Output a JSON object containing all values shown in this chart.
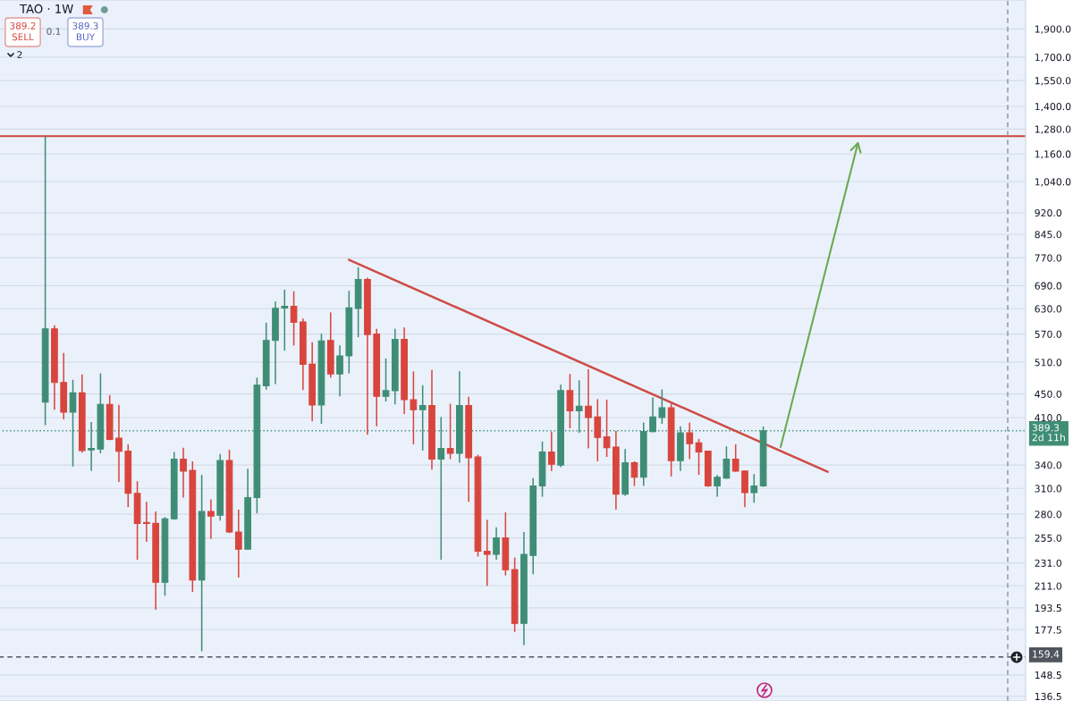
{
  "chart_data": {
    "type": "candlestick",
    "title": "TAO · 1W",
    "log": true,
    "annotations": [
      "389.2\nSELL",
      "0.1",
      "389.3\nBUY",
      "2"
    ],
    "categories": [
      null,
      null,
      null,
      null,
      null,
      null,
      null,
      null,
      null,
      null,
      null,
      null,
      null,
      null,
      null,
      null,
      null,
      null,
      null,
      null,
      null,
      null,
      null,
      null,
      null,
      null,
      null,
      null,
      null,
      null,
      null,
      null,
      null,
      null,
      null,
      null,
      null,
      null,
      null,
      null,
      null,
      null,
      null,
      null,
      null,
      null,
      null,
      null,
      null,
      null,
      null,
      null,
      null,
      null,
      null,
      null,
      null,
      null,
      null,
      null,
      null,
      null,
      null,
      null,
      null,
      null,
      null,
      null,
      null,
      null,
      null,
      null,
      null,
      null,
      null,
      null,
      null,
      null,
      null,
      null,
      null,
      null,
      null,
      null,
      null,
      null,
      null,
      null,
      null,
      null,
      null,
      null,
      null,
      null,
      null,
      null,
      null,
      null,
      null,
      null,
      null,
      null,
      null,
      null,
      null,
      null,
      null,
      null,
      null,
      null,
      null,
      null
    ],
    "ohlc": [
      null,
      null,
      null,
      null,
      null,
      [
        436,
        1245,
        398,
        582
      ],
      [
        582,
        590,
        423,
        471
      ],
      [
        471,
        529,
        407,
        419
      ],
      [
        419,
        476,
        338,
        452
      ],
      [
        452,
        486,
        357,
        360
      ],
      [
        361,
        403,
        332,
        363
      ],
      [
        362,
        488,
        356,
        432
      ],
      [
        432,
        448,
        375,
        376
      ],
      [
        378,
        431,
        318,
        359
      ],
      [
        359,
        369,
        288,
        304
      ],
      [
        304,
        319,
        234,
        270
      ],
      [
        271,
        294,
        251,
        270
      ],
      [
        270,
        283,
        192,
        214
      ],
      [
        214,
        277,
        203,
        275
      ],
      [
        275,
        358,
        274,
        348
      ],
      [
        348,
        364,
        299,
        332
      ],
      [
        333,
        345,
        206,
        216
      ],
      [
        216,
        327,
        163,
        283
      ],
      [
        283,
        297,
        254,
        278
      ],
      [
        279,
        355,
        273,
        346
      ],
      [
        346,
        361,
        260,
        261
      ],
      [
        261,
        285,
        218,
        244
      ],
      [
        244,
        335,
        244,
        299
      ],
      [
        299,
        480,
        281,
        466
      ],
      [
        465,
        596,
        458,
        556
      ],
      [
        556,
        648,
        468,
        631
      ],
      [
        632,
        679,
        534,
        636
      ],
      [
        636,
        675,
        545,
        597
      ],
      [
        598,
        606,
        457,
        506
      ],
      [
        506,
        552,
        404,
        431
      ],
      [
        431,
        571,
        400,
        555
      ],
      [
        556,
        621,
        480,
        487
      ],
      [
        487,
        545,
        446,
        523
      ],
      [
        523,
        676,
        488,
        632
      ],
      [
        631,
        742,
        563,
        707
      ],
      [
        707,
        712,
        383,
        569
      ],
      [
        570,
        582,
        396,
        446
      ],
      [
        446,
        518,
        437,
        456
      ],
      [
        456,
        582,
        432,
        558
      ],
      [
        558,
        585,
        416,
        440
      ],
      [
        440,
        492,
        369,
        423
      ],
      [
        423,
        466,
        360,
        430
      ],
      [
        430,
        495,
        334,
        348
      ],
      [
        348,
        411,
        234,
        363
      ],
      [
        363,
        433,
        348,
        356
      ],
      [
        356,
        492,
        343,
        430
      ],
      [
        430,
        445,
        294,
        350
      ],
      [
        351,
        354,
        237,
        242
      ],
      [
        242,
        274,
        211,
        239
      ],
      [
        239,
        266,
        234,
        255
      ],
      [
        255,
        282,
        220,
        225
      ],
      [
        225,
        236,
        176,
        182
      ],
      [
        182,
        261,
        167,
        239
      ],
      [
        238,
        323,
        221,
        313
      ],
      [
        313,
        373,
        300,
        358
      ],
      [
        358,
        388,
        332,
        341
      ],
      [
        340,
        467,
        337,
        456
      ],
      [
        456,
        487,
        393,
        421
      ],
      [
        421,
        475,
        386,
        429
      ],
      [
        429,
        496,
        363,
        410
      ],
      [
        411,
        441,
        345,
        379
      ],
      [
        380,
        440,
        351,
        364
      ],
      [
        365,
        389,
        285,
        303
      ],
      [
        303,
        362,
        301,
        343
      ],
      [
        343,
        345,
        313,
        324
      ],
      [
        324,
        402,
        313,
        388
      ],
      [
        388,
        444,
        387,
        411
      ],
      [
        410,
        458,
        400,
        426
      ],
      [
        426,
        433,
        325,
        346
      ],
      [
        346,
        396,
        332,
        386
      ],
      [
        386,
        402,
        348,
        370
      ],
      [
        371,
        377,
        327,
        358
      ],
      [
        359,
        360,
        312,
        313
      ],
      [
        313,
        327,
        300,
        324
      ],
      [
        323,
        366,
        322,
        348
      ],
      [
        348,
        369,
        331,
        332
      ],
      [
        332,
        333,
        288,
        305
      ],
      [
        305,
        328,
        293,
        313
      ],
      [
        313,
        396,
        312,
        389.3
      ],
      null,
      null,
      null,
      null,
      null,
      null,
      null,
      null,
      null,
      null,
      null,
      null,
      null,
      null,
      null,
      null,
      null,
      null,
      null,
      null,
      null,
      null,
      null,
      null,
      null,
      null,
      null,
      null
    ],
    "colors": [
      null,
      null,
      null,
      null,
      null,
      "#3f8d75",
      "#d8453d",
      "#d8453d",
      "#3f8d75",
      "#d8453d",
      "#3f8d75",
      "#3f8d75",
      "#d8453d",
      "#d8453d",
      "#d8453d",
      "#d8453d",
      "#d8453d",
      "#d8453d",
      "#3f8d75",
      "#3f8d75",
      "#d8453d",
      "#d8453d",
      "#3f8d75",
      "#d8453d",
      "#3f8d75",
      "#d8453d",
      "#d8453d",
      "#3f8d75",
      "#3f8d75",
      "#3f8d75",
      "#3f8d75",
      "#3f8d75",
      "#d8453d",
      "#d8453d",
      "#d8453d",
      "#3f8d75",
      "#d8453d",
      "#3f8d75",
      "#3f8d75",
      "#3f8d75",
      "#d8453d",
      "#d8453d",
      "#3f8d75",
      "#3f8d75",
      "#d8453d",
      "#d8453d",
      "#3f8d75",
      "#d8453d",
      "#3f8d75",
      "#d8453d",
      "#3f8d75",
      "#d8453d",
      "#d8453d",
      "#d8453d",
      "#3f8d75",
      "#d8453d",
      "#d8453d",
      "#3f8d75",
      "#3f8d75",
      "#3f8d75",
      "#d8453d",
      "#3f8d75",
      "#d8453d",
      "#3f8d75",
      "#d8453d",
      "#d8453d",
      "#d8453d",
      "#d8453d",
      "#3f8d75",
      "#d8453d",
      "#3f8d75",
      "#3f8d75",
      "#3f8d75",
      "#d8453d",
      "#3f8d75",
      "#d8453d",
      "#d8453d",
      "#d8453d",
      "#3f8d75",
      "#3f8d75",
      "#d8453d",
      "#d8453d",
      "#3f8d75",
      "#3f8d75",
      null,
      null,
      null,
      null,
      null,
      null,
      null,
      null,
      null,
      null,
      null,
      null,
      null,
      null,
      null,
      null,
      null,
      null,
      null,
      null,
      null,
      null,
      null,
      null,
      null,
      null,
      null,
      null
    ],
    "series": [
      {
        "type": "line",
        "color": "#cf4b45",
        "values": [
          null,
          null,
          null,
          null,
          null,
          null,
          null,
          null,
          null,
          null,
          null,
          null,
          null,
          null,
          null,
          null,
          null,
          null,
          null,
          null,
          null,
          null,
          null,
          null,
          null,
          null,
          null,
          null,
          null,
          null,
          null,
          null,
          null,
          null,
          null,
          null,
          null,
          null,
          764,
          null,
          null,
          null,
          null,
          null,
          null,
          null,
          null,
          null,
          null,
          null,
          null,
          null,
          null,
          null,
          null,
          null,
          null,
          null,
          null,
          null,
          null,
          null,
          null,
          null,
          null,
          null,
          null,
          null,
          null,
          null,
          null,
          null,
          null,
          null,
          null,
          null,
          null,
          null,
          null,
          null,
          null,
          null,
          null,
          null,
          null,
          null,
          null,
          null,
          null,
          null,
          331,
          null,
          null,
          null,
          null,
          null,
          null,
          null,
          null,
          null,
          null,
          null,
          null,
          null,
          null,
          null,
          null,
          null,
          null,
          null,
          null,
          null
        ]
      }
    ],
    "ylim": [
      134,
      2130
    ],
    "yticks": [
      {
        "value": 136.5,
        "label": "136.5"
      },
      {
        "value": 148.5,
        "label": "148.5"
      },
      {
        "value": 177.5,
        "label": "177.5"
      },
      {
        "value": 193.5,
        "label": "193.5"
      },
      {
        "value": 211,
        "label": "211.0"
      },
      {
        "value": 231,
        "label": "231.0"
      },
      {
        "value": 255,
        "label": "255.0"
      },
      {
        "value": 280,
        "label": "280.0"
      },
      {
        "value": 310,
        "label": "310.0"
      },
      {
        "value": 340,
        "label": "340.0"
      },
      {
        "value": 410,
        "label": "410.0"
      },
      {
        "value": 450,
        "label": "450.0"
      },
      {
        "value": 510,
        "label": "510.0"
      },
      {
        "value": 570,
        "label": "570.0"
      },
      {
        "value": 630,
        "label": "630.0"
      },
      {
        "value": 690,
        "label": "690.0"
      },
      {
        "value": 770,
        "label": "770.0"
      },
      {
        "value": 845,
        "label": "845.0"
      },
      {
        "value": 920,
        "label": "920.0"
      },
      {
        "value": 1040,
        "label": "1,040.0"
      },
      {
        "value": 1160,
        "label": "1,160.0"
      },
      {
        "value": 1280,
        "label": "1,280.0"
      },
      {
        "value": 1400,
        "label": "1,400.0"
      },
      {
        "value": 1550,
        "label": "1,550.0"
      },
      {
        "value": 1700,
        "label": "1,700.0"
      },
      {
        "value": 1900,
        "label": "1,900.0"
      }
    ],
    "tick_labels": "y",
    "grid": "y",
    "ref_lines": [
      {
        "axis": "y",
        "value": 1245,
        "color": "#d0433a",
        "line_style": "solid"
      },
      {
        "axis": "y",
        "value": 389.3,
        "label": "389.3\n2d 11h",
        "color": "#3f8d75",
        "line_style": "dotted"
      },
      {
        "axis": "y",
        "value": 159.4,
        "label": "159.4",
        "color": "#50555e",
        "line_style": "dashed"
      }
    ]
  }
}
